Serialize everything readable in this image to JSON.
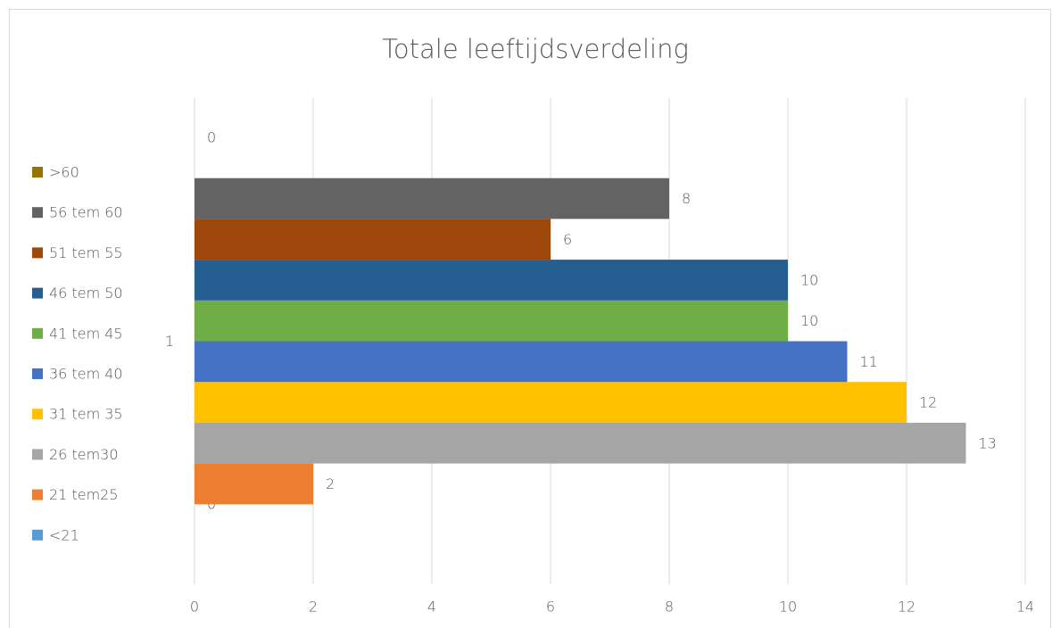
{
  "chart_data": {
    "type": "bar",
    "orientation": "horizontal",
    "title": "Totale leeftijdsverdeling",
    "categories": [
      "1"
    ],
    "series": [
      {
        "name": "<21",
        "color": "#5b9bd5",
        "values": [
          0
        ]
      },
      {
        "name": "21 tem25",
        "color": "#ed7d31",
        "values": [
          2
        ]
      },
      {
        "name": "26 tem30",
        "color": "#a5a5a5",
        "values": [
          13
        ]
      },
      {
        "name": "31 tem 35",
        "color": "#ffc000",
        "values": [
          12
        ]
      },
      {
        "name": "36 tem 40",
        "color": "#4472c4",
        "values": [
          11
        ]
      },
      {
        "name": "41 tem 45",
        "color": "#70ad47",
        "values": [
          10
        ]
      },
      {
        "name": "46 tem 50",
        "color": "#255e91",
        "values": [
          10
        ]
      },
      {
        "name": "51 tem 55",
        "color": "#9e480e",
        "values": [
          6
        ]
      },
      {
        "name": "56 tem 60",
        "color": "#636363",
        "values": [
          8
        ]
      },
      {
        "name": ">60",
        "color": "#997300",
        "values": [
          0
        ]
      }
    ],
    "xlim": [
      0,
      14
    ],
    "xticks": [
      0,
      2,
      4,
      6,
      8,
      10,
      12,
      14
    ],
    "grid": true,
    "legend": "left"
  }
}
